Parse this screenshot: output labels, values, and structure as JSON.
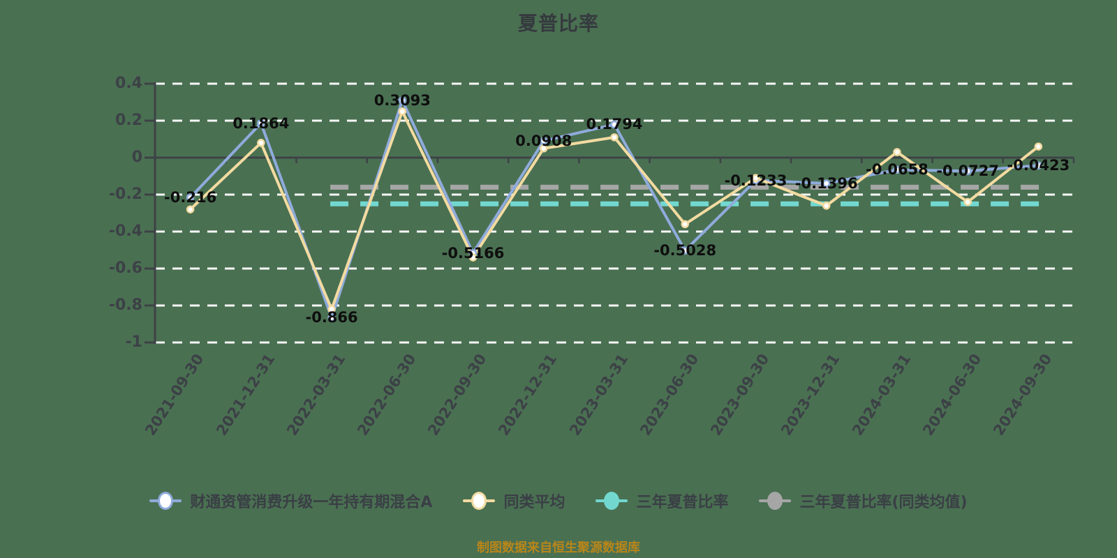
{
  "title": "夏普比率",
  "caption": "制图数据来自恒生聚源数据库",
  "colors": {
    "background": "#4a7052",
    "title": "#353a3e",
    "grid": "#f7f7f7",
    "axis": "#3d4246",
    "tick_label": "#3c4146",
    "date_label": "#3c4146",
    "value_label": "#0e0e0e",
    "legend_text": "#3a3f45",
    "caption": "#b8861a",
    "fund_line": "#8fabdc",
    "peer_line": "#f3dba1",
    "sharpe3y_line": "#72d8cf",
    "sharpe3y_avg_line": "#a6a6a6"
  },
  "chart_data": {
    "type": "line",
    "title": "夏普比率",
    "xlabel": "",
    "ylabel": "",
    "ylim": [
      -1,
      0.4
    ],
    "grid": "horizontal-dashed",
    "legend_position": "bottom",
    "yticks": [
      {
        "label": "0.4",
        "value": 0.4
      },
      {
        "label": "0.2",
        "value": 0.2
      },
      {
        "label": "0",
        "value": 0
      },
      {
        "label": "-0.2",
        "value": -0.2
      },
      {
        "label": "-0.4",
        "value": -0.4
      },
      {
        "label": "-0.6",
        "value": -0.6
      },
      {
        "label": "-0.8",
        "value": -0.8
      },
      {
        "label": "-1",
        "value": -1
      }
    ],
    "categories": [
      "2021-09-30",
      "2021-12-31",
      "2022-03-31",
      "2022-06-30",
      "2022-09-30",
      "2022-12-31",
      "2023-03-31",
      "2023-06-30",
      "2023-09-30",
      "2023-12-31",
      "2024-03-31",
      "2024-06-30",
      "2024-09-30"
    ],
    "series": [
      {
        "name": "财通资管消费升级一年持有期混合A",
        "type": "line",
        "color": "#8fabdc",
        "marker": "hollow",
        "values": [
          -0.216,
          0.1864,
          -0.866,
          0.3093,
          -0.5166,
          0.0908,
          0.1794,
          -0.5028,
          -0.1233,
          -0.1396,
          -0.0658,
          -0.0727,
          -0.0423
        ],
        "point_labels": [
          "-0.216",
          "0.1864",
          "-0.866",
          "0.3093",
          "-0.5166",
          "0.0908",
          "0.1794",
          "-0.5028",
          "-0.1233",
          "-0.1396",
          "-0.0658",
          "-0.0727",
          "-0.0423"
        ]
      },
      {
        "name": "同类平均",
        "type": "line",
        "color": "#f3dba1",
        "marker": "hollow",
        "values": [
          -0.28,
          0.08,
          -0.82,
          0.25,
          -0.54,
          0.05,
          0.11,
          -0.36,
          -0.11,
          -0.26,
          0.03,
          -0.24,
          0.06
        ],
        "point_labels": []
      },
      {
        "name": "三年夏普比率",
        "type": "markline",
        "color": "#72d8cf",
        "marker": "filled",
        "value": -0.25,
        "span": [
          2,
          12
        ]
      },
      {
        "name": "三年夏普比率(同类均值)",
        "type": "markline",
        "color": "#a6a6a6",
        "marker": "filled",
        "value": -0.16,
        "span": [
          2,
          12
        ]
      }
    ]
  }
}
